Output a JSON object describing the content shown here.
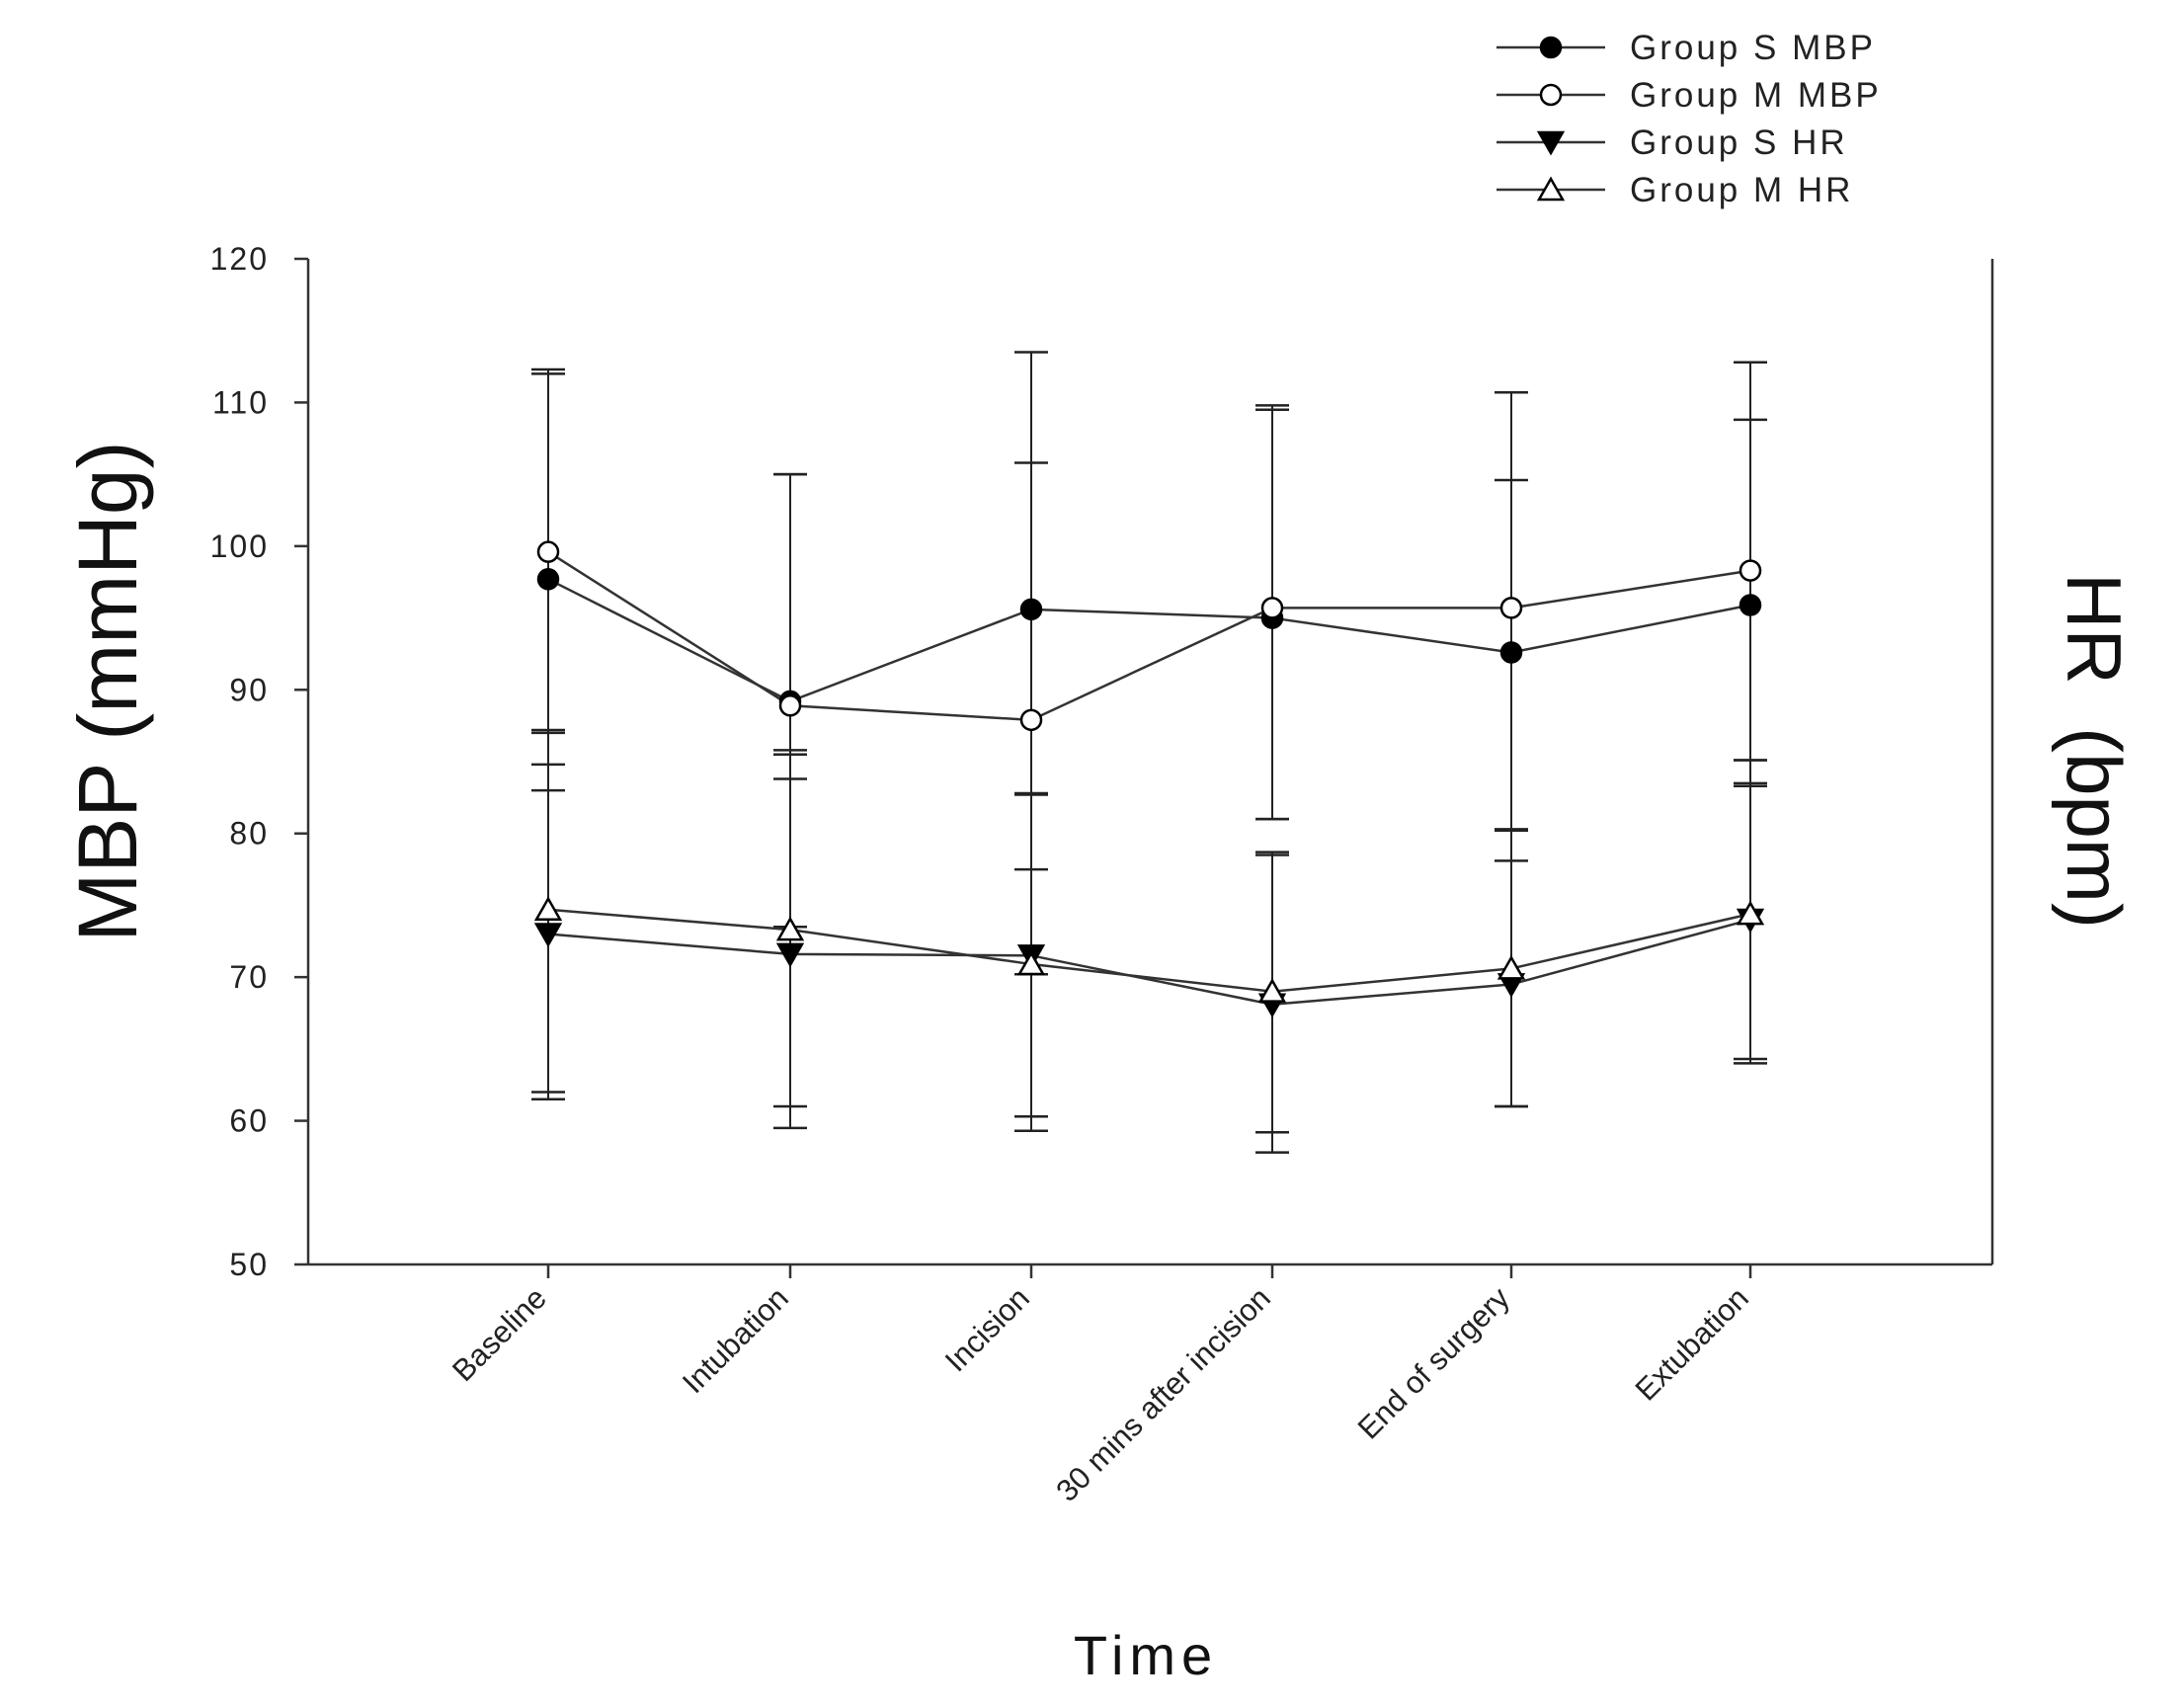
{
  "chart_data": {
    "type": "line",
    "title": "",
    "xlabel": "Time",
    "ylabel": "MBP (mmHg)",
    "y2label": "HR  (bpm)",
    "ylim": [
      50,
      120
    ],
    "yticks": [
      50,
      60,
      70,
      80,
      90,
      100,
      110,
      120
    ],
    "grid": false,
    "legend_position": "top-right",
    "categories": [
      "Baseline",
      "Intubation",
      "Incision",
      "30 mins after incision",
      "End of surgery",
      "Extubation"
    ],
    "series": [
      {
        "name": "Group S MBP",
        "marker": "circle-filled",
        "values": [
          97.7,
          89.2,
          95.6,
          95.0,
          92.6,
          95.9
        ],
        "err_upper": [
          112.0,
          105.0,
          113.5,
          109.5,
          110.7,
          112.8
        ],
        "err_lower": [
          83.0,
          73.5,
          77.5,
          81.0,
          80.2,
          85.1
        ]
      },
      {
        "name": "Group M MBP",
        "marker": "circle-open",
        "values": [
          99.6,
          88.9,
          87.9,
          95.7,
          95.7,
          98.3
        ],
        "err_upper": [
          112.3,
          105.0,
          105.8,
          109.8,
          104.6,
          108.8
        ],
        "err_lower": [
          87.2,
          85.8,
          70.2,
          81.0,
          80.3,
          83.5
        ]
      },
      {
        "name": "Group S HR",
        "marker": "triangle-down-filled",
        "values": [
          73.0,
          71.6,
          71.5,
          68.1,
          69.5,
          74.0
        ],
        "err_upper": [
          84.8,
          83.8,
          82.7,
          78.7,
          80.2,
          83.3
        ],
        "err_lower": [
          61.5,
          59.5,
          59.3,
          57.8,
          61.0,
          64.3
        ]
      },
      {
        "name": "Group M HR",
        "marker": "triangle-up-open",
        "values": [
          74.7,
          73.3,
          70.9,
          69.0,
          70.6,
          74.4
        ],
        "err_upper": [
          87.0,
          85.5,
          82.8,
          78.5,
          78.1,
          85.1
        ],
        "err_lower": [
          62.0,
          61.0,
          60.3,
          59.2,
          61.0,
          64.0
        ]
      }
    ]
  }
}
